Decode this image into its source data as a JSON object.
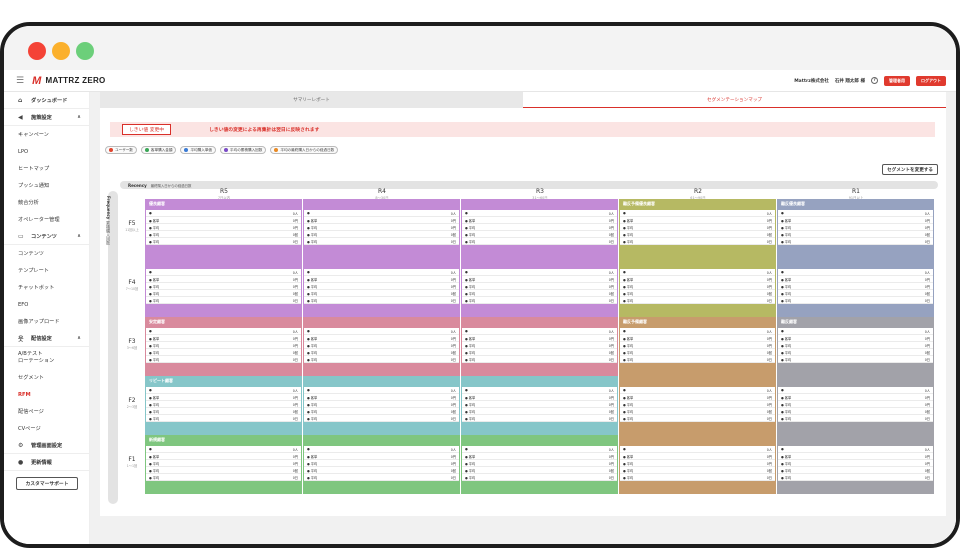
{
  "header": {
    "logo_text": "MATTRZ ZERO",
    "company": "Mattrz株式会社",
    "user": "石井 翔太郎 様",
    "help_icon": "?",
    "btn_admin": "管理者用",
    "btn_logout": "ログアウト"
  },
  "sidebar": {
    "dashboard": "ダッシュボード",
    "group_marketing": "施策設定",
    "marketing_items": [
      "キャンペーン",
      "LPO",
      "ヒートマップ",
      "プッシュ通知",
      "競合分析",
      "オペレーター管理"
    ],
    "group_contents": "コンテンツ",
    "contents_items": [
      "コンテンツ",
      "テンプレート",
      "チャットボット",
      "EFO",
      "画像アップロード"
    ],
    "group_delivery": "配信設定",
    "delivery_items": [
      "A/Bテスト\nローテーション",
      "セグメント",
      "RFM",
      "配信ページ",
      "CVページ"
    ],
    "admin": "管理画面設定",
    "updates": "更新情報",
    "support": "カスタマーサポート"
  },
  "tabs": {
    "summary": "サマリーレポート",
    "segment_map": "セグメンテーションマップ"
  },
  "notice": {
    "tag": "しきい値 変更中",
    "message": "しきい値の変更による再集計は翌日に反映されます"
  },
  "legend": [
    {
      "label": "ユーザー数",
      "color": "#e0452e"
    },
    {
      "label": "客単購入金額",
      "color": "#3aa657"
    },
    {
      "label": "平均購入単価",
      "color": "#3a7bd5"
    },
    {
      "label": "平均の累積購入回数",
      "color": "#7b4bc7"
    },
    {
      "label": "平均の最終購入日からの経過日数",
      "color": "#e98a24"
    }
  ],
  "change_segment_button": "セグメントを変更する",
  "recency": {
    "label": "Recency",
    "sub": "最終購入日からの経過日数"
  },
  "frequency": {
    "label": "Frequency",
    "sub": "累積購入回数"
  },
  "r_headers": [
    {
      "r": "R5",
      "range": "7日以内"
    },
    {
      "r": "R4",
      "range": "8～30日"
    },
    {
      "r": "R3",
      "range": "31～60日"
    },
    {
      "r": "R2",
      "range": "61～90日"
    },
    {
      "r": "R1",
      "range": "91日以上"
    }
  ],
  "f_headers": [
    {
      "f": "F5",
      "range": "11回以上"
    },
    {
      "f": "F4",
      "range": "7～10回"
    },
    {
      "f": "F3",
      "range": "3～6回"
    },
    {
      "f": "F2",
      "range": "2～3回"
    },
    {
      "f": "F1",
      "range": "1～1回"
    }
  ],
  "row_labels": [
    "●",
    "● 客単",
    "● 平均",
    "● 平均",
    "● 平均"
  ],
  "row_values": [
    "0人",
    "0円",
    "0円",
    "0回",
    "0日"
  ],
  "segments": {
    "loyal": "優良顧客",
    "dormant_loyal": "離反予備優良顧客",
    "lost_loyal": "離反優良顧客",
    "stable": "安定顧客",
    "dormant": "離反予備顧客",
    "lost": "離反顧客",
    "repeat": "リピート顧客",
    "new": "新規顧客"
  },
  "colors": {
    "purple": "#c38bd6",
    "olive": "#b6b963",
    "slate": "#96a2c0",
    "pink": "#d98a9d",
    "tan": "#c79c6c",
    "gray": "#a2a2a9",
    "teal": "#86c6c9",
    "green": "#7fc67f",
    "brand_red": "#d9302a"
  }
}
